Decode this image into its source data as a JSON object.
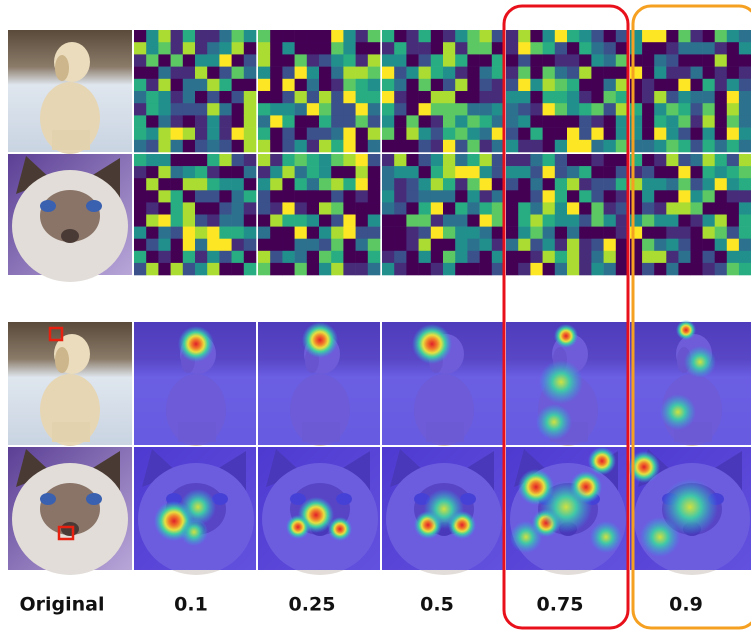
{
  "columns": [
    "Original",
    "0.1",
    "0.25",
    "0.5",
    "0.75",
    "0.9"
  ]
}
